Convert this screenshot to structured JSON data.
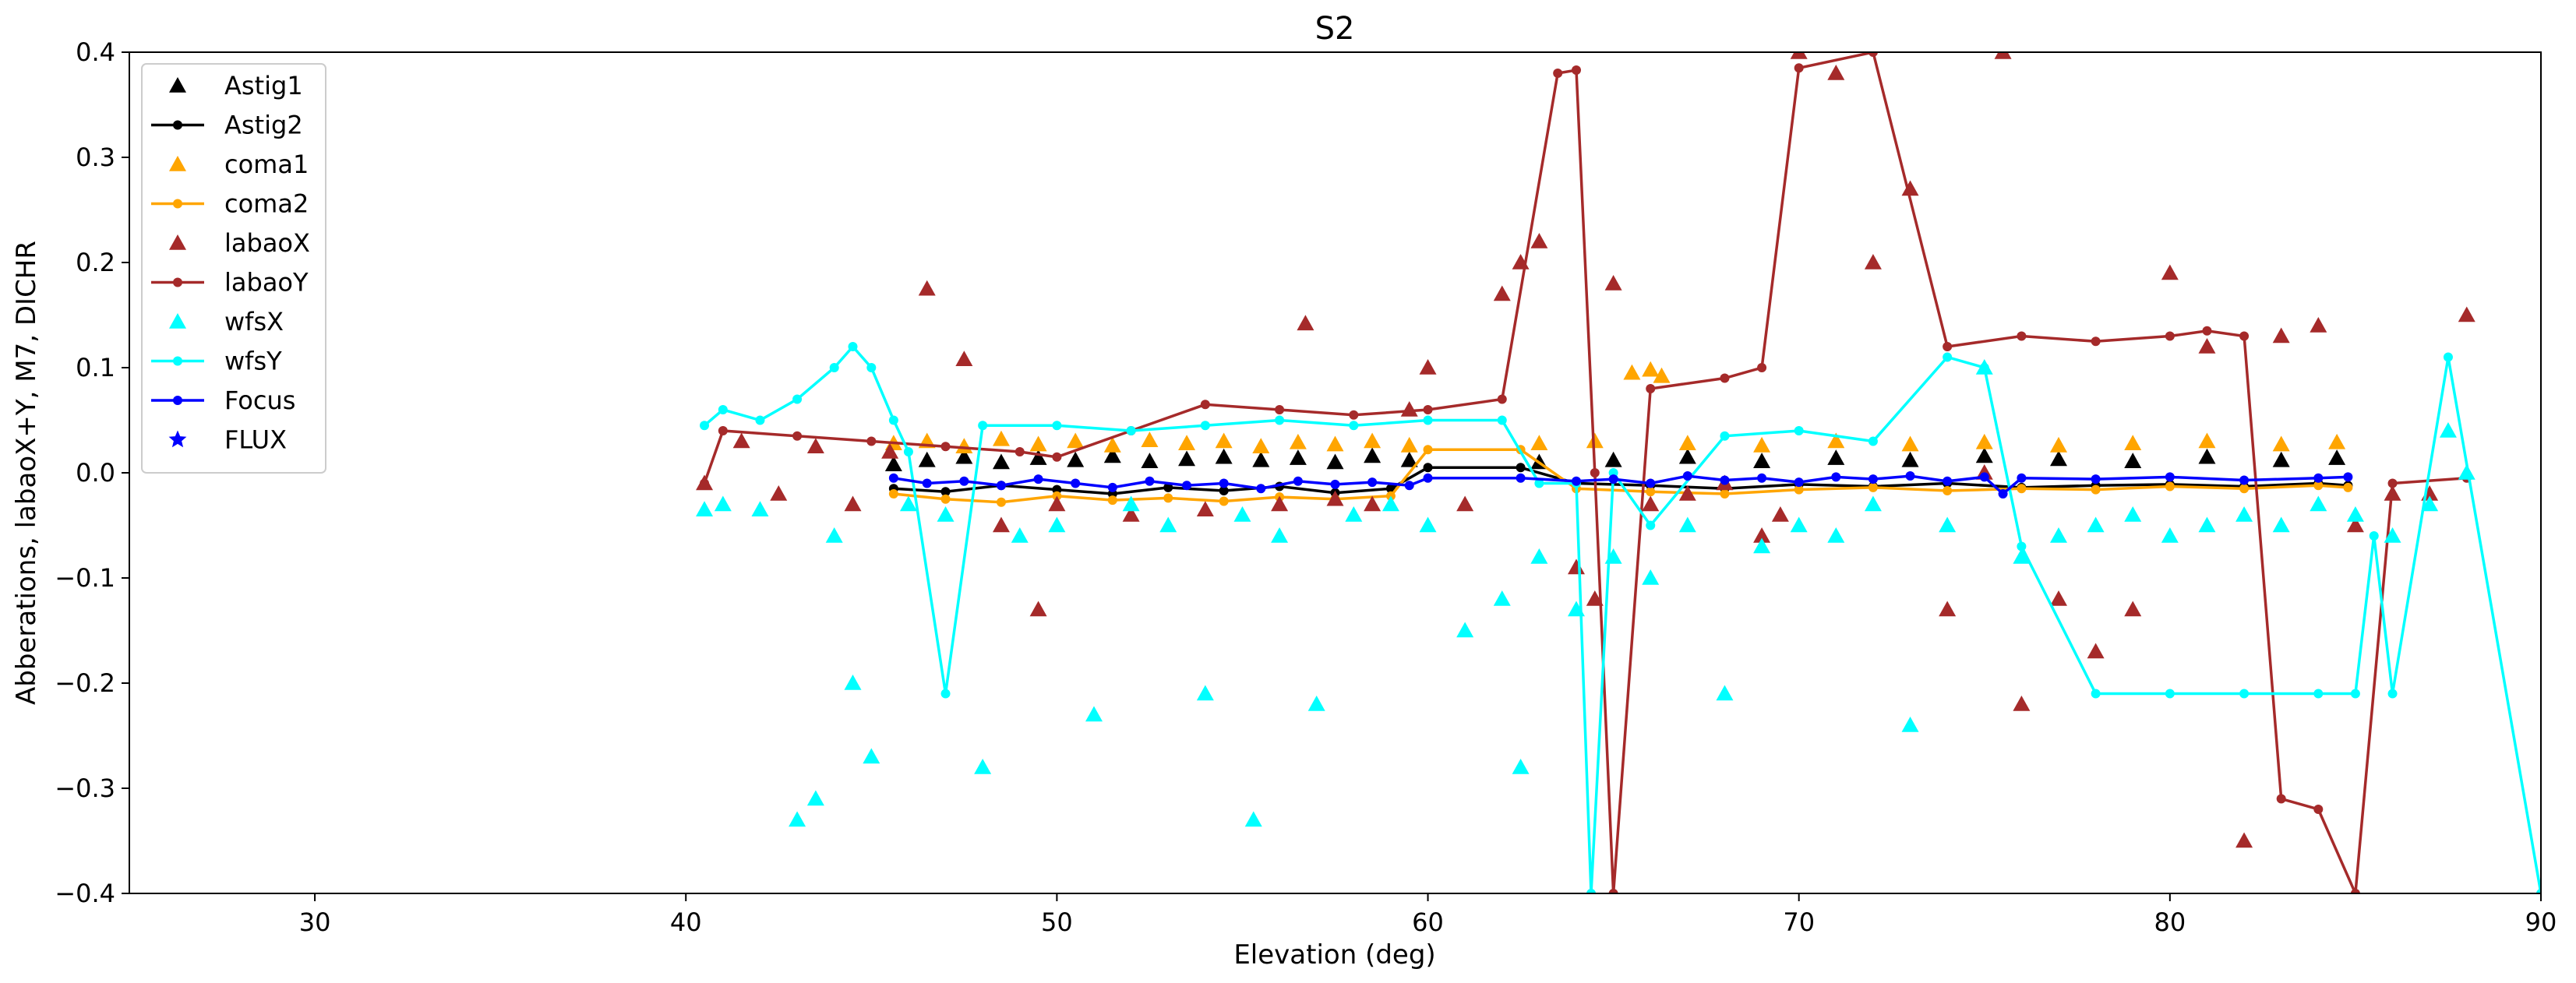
{
  "chart_data": {
    "type": "scatter",
    "title": "S2",
    "xlabel": "Elevation (deg)",
    "ylabel": "Abberations, labaoX+Y, M7, DICHR",
    "xlim": [
      25,
      90
    ],
    "ylim": [
      -0.4,
      0.4
    ],
    "xticks": [
      30,
      40,
      50,
      60,
      70,
      80,
      90
    ],
    "yticks": [
      -0.4,
      -0.3,
      -0.2,
      -0.1,
      0.0,
      0.1,
      0.2,
      0.3,
      0.4
    ],
    "grid": false,
    "legend_position": "top-left",
    "series": [
      {
        "name": "Astig1",
        "color": "#000000",
        "marker": "triangle",
        "line": false,
        "x": [
          45.6,
          46.5,
          47.5,
          48.5,
          49.5,
          50.5,
          51.5,
          52.5,
          53.5,
          54.5,
          55.5,
          56.5,
          57.5,
          58.5,
          59.5,
          63,
          65,
          67,
          69,
          71,
          73,
          75,
          77,
          79,
          81,
          83,
          84.5
        ],
        "y": [
          0.008,
          0.012,
          0.015,
          0.01,
          0.014,
          0.012,
          0.016,
          0.011,
          0.013,
          0.015,
          0.012,
          0.014,
          0.01,
          0.016,
          0.012,
          0.01,
          0.012,
          0.015,
          0.011,
          0.014,
          0.012,
          0.016,
          0.013,
          0.011,
          0.015,
          0.012,
          0.014
        ]
      },
      {
        "name": "Astig2",
        "color": "#000000",
        "marker": "circle",
        "line": true,
        "x": [
          45.6,
          47,
          48.5,
          50,
          51.5,
          53,
          54.5,
          56,
          57.5,
          59,
          60,
          62.5,
          64,
          66,
          68,
          70,
          72,
          74,
          76,
          78,
          80,
          82,
          84,
          84.8
        ],
        "y": [
          -0.015,
          -0.018,
          -0.012,
          -0.016,
          -0.02,
          -0.014,
          -0.017,
          -0.013,
          -0.019,
          -0.015,
          0.005,
          0.005,
          -0.01,
          -0.012,
          -0.015,
          -0.011,
          -0.013,
          -0.01,
          -0.014,
          -0.012,
          -0.011,
          -0.013,
          -0.01,
          -0.012
        ]
      },
      {
        "name": "coma1",
        "color": "#FFA500",
        "marker": "triangle",
        "line": false,
        "x": [
          45.6,
          46.5,
          47.5,
          48.5,
          49.5,
          50.5,
          51.5,
          52.5,
          53.5,
          54.5,
          55.5,
          56.5,
          57.5,
          58.5,
          59.5,
          63,
          64.5,
          65.5,
          66,
          66.3,
          67,
          69,
          71,
          73,
          75,
          77,
          79,
          81,
          83,
          84.5
        ],
        "y": [
          0.028,
          0.03,
          0.025,
          0.032,
          0.027,
          0.03,
          0.026,
          0.031,
          0.028,
          0.03,
          0.025,
          0.029,
          0.027,
          0.03,
          0.026,
          0.028,
          0.03,
          0.095,
          0.098,
          0.092,
          0.028,
          0.026,
          0.03,
          0.027,
          0.029,
          0.026,
          0.028,
          0.03,
          0.027,
          0.029
        ]
      },
      {
        "name": "coma2",
        "color": "#FFA500",
        "marker": "circle",
        "line": true,
        "x": [
          45.6,
          47,
          48.5,
          50,
          51.5,
          53,
          54.5,
          56,
          57.5,
          59,
          60,
          62.5,
          64,
          66,
          68,
          70,
          72,
          74,
          76,
          78,
          80,
          82,
          84,
          84.8
        ],
        "y": [
          -0.02,
          -0.025,
          -0.028,
          -0.022,
          -0.026,
          -0.024,
          -0.027,
          -0.023,
          -0.025,
          -0.022,
          0.022,
          0.022,
          -0.015,
          -0.018,
          -0.02,
          -0.016,
          -0.014,
          -0.017,
          -0.015,
          -0.016,
          -0.013,
          -0.015,
          -0.012,
          -0.014
        ]
      },
      {
        "name": "labaoX",
        "color": "#A52A2A",
        "marker": "triangle",
        "line": false,
        "x": [
          40.5,
          41.5,
          42.5,
          43.5,
          44.5,
          45.5,
          46.5,
          47.5,
          48.5,
          49.5,
          50,
          52,
          54,
          56,
          56.7,
          57.5,
          58.5,
          59.5,
          60,
          61,
          62,
          62.5,
          63,
          64,
          64.5,
          65,
          66,
          67,
          68,
          69,
          69.5,
          70,
          71,
          72,
          73,
          74,
          75,
          75.5,
          76,
          77,
          78,
          79,
          80,
          81,
          82,
          83,
          84,
          85,
          86,
          87,
          88
        ],
        "y": [
          -0.01,
          0.03,
          -0.02,
          0.025,
          -0.03,
          0.02,
          0.175,
          0.108,
          -0.05,
          -0.13,
          -0.03,
          -0.04,
          -0.035,
          -0.03,
          0.142,
          -0.025,
          -0.03,
          0.06,
          0.1,
          -0.03,
          0.17,
          0.2,
          0.22,
          -0.09,
          -0.12,
          0.18,
          -0.03,
          -0.02,
          -0.01,
          -0.06,
          -0.04,
          0.4,
          0.38,
          0.2,
          0.27,
          -0.13,
          0.0,
          0.4,
          -0.22,
          -0.12,
          -0.17,
          -0.13,
          0.19,
          0.12,
          -0.35,
          0.13,
          0.14,
          -0.05,
          -0.02,
          -0.02,
          0.15
        ]
      },
      {
        "name": "labaoY",
        "color": "#A52A2A",
        "marker": "circle",
        "line": true,
        "x": [
          40.5,
          41,
          43,
          45,
          47,
          49,
          50,
          52,
          54,
          56,
          58,
          60,
          62,
          63.5,
          64,
          64.5,
          65,
          66,
          68,
          69,
          70,
          72,
          74,
          76,
          78,
          80,
          81,
          82,
          83,
          84,
          85,
          86,
          88
        ],
        "y": [
          -0.01,
          0.04,
          0.035,
          0.03,
          0.025,
          0.02,
          0.015,
          0.04,
          0.065,
          0.06,
          0.055,
          0.06,
          0.07,
          0.38,
          0.383,
          0.0,
          -0.4,
          0.08,
          0.09,
          0.1,
          0.385,
          0.4,
          0.12,
          0.13,
          0.125,
          0.13,
          0.135,
          0.13,
          -0.31,
          -0.32,
          -0.4,
          -0.01,
          -0.005
        ]
      },
      {
        "name": "wfsX",
        "color": "#00FFFF",
        "marker": "triangle",
        "line": false,
        "x": [
          40.5,
          41,
          42,
          43,
          43.5,
          44,
          44.5,
          45,
          46,
          47,
          48,
          49,
          50,
          51,
          52,
          53,
          54,
          55,
          55.3,
          56,
          57,
          58,
          59,
          60,
          61,
          62,
          62.5,
          63,
          64,
          65,
          66,
          67,
          68,
          69,
          70,
          71,
          72,
          73,
          74,
          75,
          76,
          77,
          78,
          79,
          80,
          81,
          82,
          83,
          84,
          85,
          86,
          87,
          87.5,
          88
        ],
        "y": [
          -0.035,
          -0.03,
          -0.035,
          -0.33,
          -0.31,
          -0.06,
          -0.2,
          -0.27,
          -0.03,
          -0.04,
          -0.28,
          -0.06,
          -0.05,
          -0.23,
          -0.03,
          -0.05,
          -0.21,
          -0.04,
          -0.33,
          -0.06,
          -0.22,
          -0.04,
          -0.03,
          -0.05,
          -0.15,
          -0.12,
          -0.28,
          -0.08,
          -0.13,
          -0.08,
          -0.1,
          -0.05,
          -0.21,
          -0.07,
          -0.05,
          -0.06,
          -0.03,
          -0.24,
          -0.05,
          0.1,
          -0.08,
          -0.06,
          -0.05,
          -0.04,
          -0.06,
          -0.05,
          -0.04,
          -0.05,
          -0.03,
          -0.04,
          -0.06,
          -0.03,
          0.04,
          0.0
        ]
      },
      {
        "name": "wfsY",
        "color": "#00FFFF",
        "marker": "circle",
        "line": true,
        "x": [
          40.5,
          41,
          42,
          43,
          44,
          44.5,
          45,
          45.6,
          46,
          47,
          48,
          50,
          52,
          54,
          56,
          58,
          60,
          62,
          63,
          64,
          64.4,
          65,
          66,
          68,
          70,
          72,
          74,
          75,
          76,
          78,
          80,
          82,
          84,
          85,
          85.5,
          86,
          87.5,
          90
        ],
        "y": [
          0.045,
          0.06,
          0.05,
          0.07,
          0.1,
          0.12,
          0.1,
          0.05,
          0.02,
          -0.21,
          0.045,
          0.045,
          0.04,
          0.045,
          0.05,
          0.045,
          0.05,
          0.05,
          -0.01,
          -0.01,
          -0.4,
          0.0,
          -0.05,
          0.035,
          0.04,
          0.03,
          0.11,
          0.1,
          -0.07,
          -0.21,
          -0.21,
          -0.21,
          -0.21,
          -0.21,
          -0.06,
          -0.21,
          0.11,
          -0.4
        ]
      },
      {
        "name": "Focus",
        "color": "#0000FF",
        "marker": "circle",
        "line": true,
        "x": [
          45.6,
          46.5,
          47.5,
          48.5,
          49.5,
          50.5,
          51.5,
          52.5,
          53.5,
          54.5,
          55.5,
          56.5,
          57.5,
          58.5,
          59.5,
          60,
          62.5,
          64,
          65,
          66,
          67,
          68,
          69,
          70,
          71,
          72,
          73,
          74,
          75,
          75.5,
          76,
          78,
          80,
          82,
          84,
          84.8
        ],
        "y": [
          -0.005,
          -0.01,
          -0.008,
          -0.012,
          -0.006,
          -0.01,
          -0.014,
          -0.008,
          -0.012,
          -0.01,
          -0.015,
          -0.008,
          -0.011,
          -0.009,
          -0.012,
          -0.005,
          -0.005,
          -0.008,
          -0.006,
          -0.01,
          -0.003,
          -0.007,
          -0.005,
          -0.009,
          -0.004,
          -0.006,
          -0.003,
          -0.008,
          -0.004,
          -0.02,
          -0.005,
          -0.006,
          -0.004,
          -0.007,
          -0.005,
          -0.004
        ]
      },
      {
        "name": "FLUX",
        "color": "#0000FF",
        "marker": "star",
        "line": false,
        "x": [],
        "y": []
      }
    ]
  }
}
